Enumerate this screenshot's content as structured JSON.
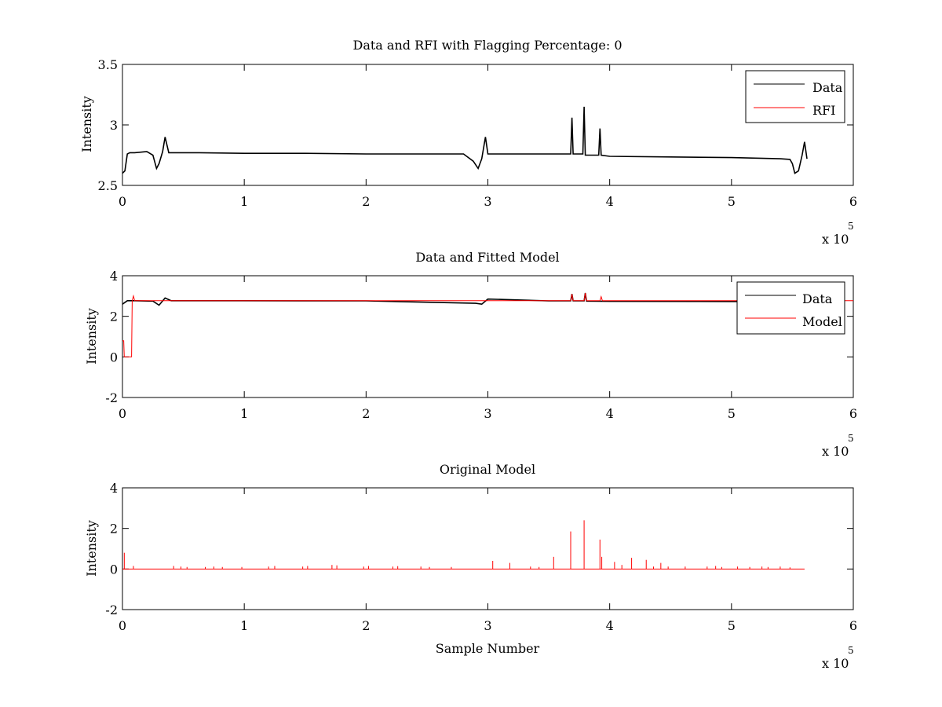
{
  "figure": {
    "background": "#ffffff",
    "colors": {
      "data": "#000000",
      "rfi": "#ff0000",
      "axes": "#000000"
    }
  },
  "chart_data": [
    {
      "type": "line",
      "title": "Data and RFI with Flagging Percentage: 0",
      "xlabel": "",
      "ylabel": "Intensity",
      "xlim": [
        0,
        600000
      ],
      "ylim": [
        2.5,
        3.5
      ],
      "x_ticks": [
        "0",
        "1",
        "2",
        "3",
        "4",
        "5",
        "6"
      ],
      "y_ticks": [
        "2.5",
        "3",
        "3.5"
      ],
      "x_tick_values": [
        0,
        100000,
        200000,
        300000,
        400000,
        500000,
        600000
      ],
      "y_tick_values": [
        2.5,
        3.0,
        3.5
      ],
      "x_exponent_base": "x 10",
      "x_exponent_power": "5",
      "grid": false,
      "legend": {
        "placement": "top-right",
        "entries": [
          {
            "name": "Data",
            "color": "#000000"
          },
          {
            "name": "RFI",
            "color": "#ff0000"
          }
        ]
      },
      "series": [
        {
          "name": "Data",
          "color": "#000000",
          "x": [
            0,
            2000,
            4000,
            6000,
            10000,
            20000,
            25000,
            28000,
            30000,
            33000,
            35000,
            38000,
            60000,
            100000,
            150000,
            200000,
            250000,
            280000,
            288000,
            292000,
            295000,
            298000,
            300000,
            302000,
            320000,
            350000,
            368000,
            369000,
            370000,
            378000,
            379000,
            380000,
            391000,
            392000,
            393000,
            400000,
            450000,
            500000,
            540000,
            548000,
            550000,
            552000,
            555000,
            558000,
            560000,
            562000
          ],
          "y": [
            2.6,
            2.62,
            2.76,
            2.77,
            2.77,
            2.78,
            2.75,
            2.64,
            2.68,
            2.78,
            2.9,
            2.77,
            2.77,
            2.765,
            2.765,
            2.76,
            2.76,
            2.76,
            2.7,
            2.64,
            2.72,
            2.9,
            2.76,
            2.76,
            2.76,
            2.76,
            2.76,
            3.06,
            2.76,
            2.76,
            3.15,
            2.75,
            2.75,
            2.97,
            2.75,
            2.74,
            2.735,
            2.73,
            2.72,
            2.715,
            2.68,
            2.6,
            2.62,
            2.75,
            2.86,
            2.72
          ]
        },
        {
          "name": "RFI",
          "color": "#ff0000",
          "x": [],
          "y": []
        }
      ]
    },
    {
      "type": "line",
      "title": "Data and Fitted Model",
      "xlabel": "",
      "ylabel": "Intensity",
      "xlim": [
        0,
        600000
      ],
      "ylim": [
        -2,
        4
      ],
      "x_ticks": [
        "0",
        "1",
        "2",
        "3",
        "4",
        "5",
        "6"
      ],
      "y_ticks": [
        "-2",
        "0",
        "2",
        "4"
      ],
      "x_tick_values": [
        0,
        100000,
        200000,
        300000,
        400000,
        500000,
        600000
      ],
      "y_tick_values": [
        -2,
        0,
        2,
        4
      ],
      "x_exponent_base": "x 10",
      "x_exponent_power": "5",
      "grid": false,
      "legend": {
        "placement": "top-right",
        "entries": [
          {
            "name": "Data",
            "color": "#000000"
          },
          {
            "name": "Model",
            "color": "#ff0000"
          }
        ]
      },
      "series": [
        {
          "name": "Data",
          "color": "#000000",
          "x": [
            0,
            4000,
            10000,
            25000,
            30000,
            35000,
            40000,
            100000,
            200000,
            290000,
            295000,
            300000,
            350000,
            368000,
            369000,
            370000,
            379000,
            380000,
            381000,
            400000,
            500000,
            562000
          ],
          "y": [
            2.6,
            2.77,
            2.77,
            2.75,
            2.55,
            2.9,
            2.77,
            2.77,
            2.76,
            2.64,
            2.6,
            2.85,
            2.76,
            2.76,
            3.1,
            2.76,
            2.76,
            3.15,
            2.75,
            2.74,
            2.73,
            2.72
          ]
        },
        {
          "name": "Model",
          "color": "#ff0000",
          "x": [
            0,
            1000,
            1500,
            2500,
            3000,
            7500,
            8000,
            9000,
            10000,
            12000,
            100000,
            200000,
            300000,
            368000,
            369000,
            370000,
            379000,
            380000,
            381000,
            392000,
            393000,
            394000,
            600000
          ],
          "y": [
            0.8,
            0.8,
            0.0,
            0.0,
            0.0,
            0.0,
            2.77,
            3.0,
            2.77,
            2.77,
            2.77,
            2.77,
            2.77,
            2.77,
            3.1,
            2.77,
            2.77,
            3.15,
            2.77,
            2.77,
            2.97,
            2.77,
            2.77
          ]
        }
      ]
    },
    {
      "type": "line",
      "title": "Original Model",
      "xlabel": "Sample Number",
      "ylabel": "Intensity",
      "xlim": [
        0,
        600000
      ],
      "ylim": [
        -2,
        4
      ],
      "x_ticks": [
        "0",
        "1",
        "2",
        "3",
        "4",
        "5",
        "6"
      ],
      "y_ticks": [
        "-2",
        "0",
        "2",
        "4"
      ],
      "x_tick_values": [
        0,
        100000,
        200000,
        300000,
        400000,
        500000,
        600000
      ],
      "y_tick_values": [
        -2,
        0,
        2,
        4
      ],
      "x_exponent_base": "x 10",
      "x_exponent_power": "5",
      "grid": false,
      "baseline": 0,
      "x_end": 560000,
      "series": [
        {
          "name": "",
          "color": "#ff0000",
          "spikes": [
            [
              1500,
              0.8
            ],
            [
              9000,
              0.15
            ],
            [
              42000,
              0.15
            ],
            [
              48000,
              0.12
            ],
            [
              53000,
              0.1
            ],
            [
              68000,
              0.1
            ],
            [
              75000,
              0.12
            ],
            [
              82000,
              0.1
            ],
            [
              98000,
              0.1
            ],
            [
              120000,
              0.12
            ],
            [
              125000,
              0.15
            ],
            [
              148000,
              0.12
            ],
            [
              152000,
              0.15
            ],
            [
              172000,
              0.2
            ],
            [
              176000,
              0.18
            ],
            [
              198000,
              0.12
            ],
            [
              202000,
              0.15
            ],
            [
              222000,
              0.12
            ],
            [
              226000,
              0.14
            ],
            [
              245000,
              0.12
            ],
            [
              252000,
              0.1
            ],
            [
              270000,
              0.1
            ],
            [
              304000,
              0.4
            ],
            [
              318000,
              0.3
            ],
            [
              335000,
              0.12
            ],
            [
              342000,
              0.1
            ],
            [
              354000,
              0.6
            ],
            [
              368000,
              1.85
            ],
            [
              379000,
              2.4
            ],
            [
              392000,
              1.45
            ],
            [
              393500,
              0.6
            ],
            [
              404000,
              0.35
            ],
            [
              410000,
              0.2
            ],
            [
              418000,
              0.55
            ],
            [
              430000,
              0.45
            ],
            [
              436000,
              0.12
            ],
            [
              442000,
              0.3
            ],
            [
              448000,
              0.12
            ],
            [
              462000,
              0.12
            ],
            [
              480000,
              0.12
            ],
            [
              487000,
              0.15
            ],
            [
              492000,
              0.1
            ],
            [
              505000,
              0.12
            ],
            [
              515000,
              0.1
            ],
            [
              525000,
              0.12
            ],
            [
              530000,
              0.1
            ],
            [
              540000,
              0.12
            ],
            [
              548000,
              0.08
            ]
          ]
        }
      ]
    }
  ]
}
